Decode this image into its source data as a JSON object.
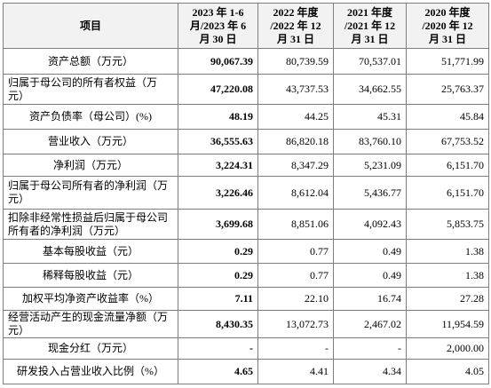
{
  "table": {
    "header": [
      [
        "项目"
      ],
      [
        "2023 年 1-6",
        "月/2023 年 6",
        "月 30 日"
      ],
      [
        "2022 年度",
        "/2022 年 12",
        "月 31 日"
      ],
      [
        "2021 年度",
        "/2021 年 12",
        "月 31 日"
      ],
      [
        "2020 年度",
        "/2020 年 12",
        "月 31 日"
      ]
    ],
    "rows": [
      [
        "资产总额（万元）",
        "90,067.39",
        "80,739.59",
        "70,537.01",
        "51,771.99"
      ],
      [
        "归属于母公司的所有者权益（万元）",
        "47,220.08",
        "43,737.53",
        "34,662.55",
        "25,763.37"
      ],
      [
        "资产负债率（母公司）(%)",
        "48.19",
        "44.25",
        "45.31",
        "45.84"
      ],
      [
        "营业收入（万元）",
        "36,555.63",
        "86,820.18",
        "83,760.10",
        "67,753.52"
      ],
      [
        "净利润（万元）",
        "3,224.31",
        "8,347.29",
        "5,231.09",
        "6,151.70"
      ],
      [
        "归属于母公司所有者的净利润（万元）",
        "3,226.46",
        "8,612.04",
        "5,436.77",
        "6,151.70"
      ],
      [
        "扣除非经常性损益后归属于母公司所有者的净利润（万元）",
        "3,699.68",
        "8,851.06",
        "4,092.43",
        "5,853.75"
      ],
      [
        "基本每股收益（元）",
        "0.29",
        "0.77",
        "0.49",
        "1.38"
      ],
      [
        "稀释每股收益（元）",
        "0.29",
        "0.77",
        "0.49",
        "1.38"
      ],
      [
        "加权平均净资产收益率（%）",
        "7.11",
        "22.10",
        "16.74",
        "27.28"
      ],
      [
        "经营活动产生的现金流量净额（万元）",
        "8,430.35",
        "13,072.73",
        "2,467.02",
        "11,954.59"
      ],
      [
        "现金分红（万元）",
        "-",
        "-",
        "-",
        "2,000.00"
      ],
      [
        "研发投入占营业收入比例（%）",
        "4.65",
        "4.41",
        "4.34",
        "4.05"
      ]
    ]
  }
}
